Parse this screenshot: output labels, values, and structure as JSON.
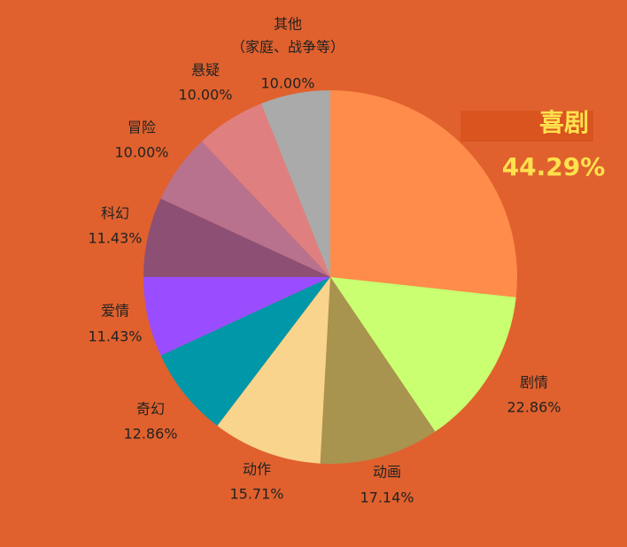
{
  "chart_data": {
    "type": "pie",
    "categories": [
      "喜剧",
      "剧情",
      "动画",
      "动作",
      "奇幻",
      "爱情",
      "科幻",
      "冒险",
      "悬疑",
      "其他"
    ],
    "values": [
      44.29,
      22.86,
      17.14,
      15.71,
      12.86,
      11.43,
      11.43,
      10.0,
      10.0,
      10.0
    ],
    "value_labels": [
      "44.29%",
      "22.86%",
      "17.14%",
      "15.71%",
      "12.86%",
      "11.43%",
      "11.43%",
      "10.00%",
      "10.00%",
      "10.00%"
    ],
    "colors": [
      "#ff8c4a",
      "#c9ff70",
      "#a8944e",
      "#f8d48c",
      "#0097a8",
      "#9a4dff",
      "#8d4f74",
      "#b8728e",
      "#e07f80",
      "#aaaaaa"
    ],
    "annotation": "（家庭、战争等）"
  }
}
